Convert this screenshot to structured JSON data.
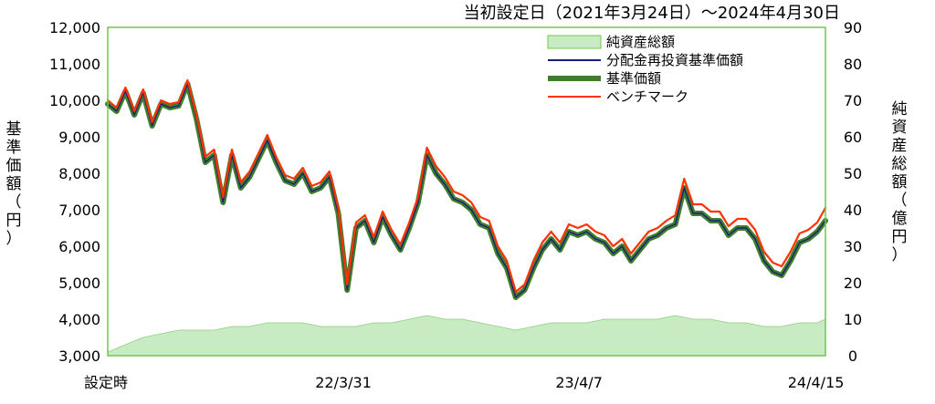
{
  "chart_data": {
    "type": "line",
    "subtitle": "当初設定日（2021年3月24日）～2024年4月30日",
    "ylabel_left": "基準価額（円）",
    "ylabel_right": "純資産総額（億円）",
    "x_ticks": [
      "設定時",
      "22/3/31",
      "23/4/7",
      "24/4/15"
    ],
    "x_start": "2021-03-24",
    "x_end": "2024-04-30",
    "x_tick_dates": [
      "2021-03-24",
      "2022-03-31",
      "2023-04-07",
      "2024-04-15"
    ],
    "y_left_ticks": [
      "3,000",
      "4,000",
      "5,000",
      "6,000",
      "7,000",
      "8,000",
      "9,000",
      "10,000",
      "11,000",
      "12,000"
    ],
    "y_right_ticks": [
      "0",
      "10",
      "20",
      "30",
      "40",
      "50",
      "60",
      "70",
      "80",
      "90"
    ],
    "ylim_left": [
      3000,
      12000
    ],
    "ylim_right": [
      0,
      90
    ],
    "legend": [
      {
        "name": "純資産総額",
        "color": "#c9ebc3",
        "style": "area"
      },
      {
        "name": "分配金再投資基準価額",
        "color": "#1a1f7a",
        "style": "line"
      },
      {
        "name": "基準価額",
        "color": "#3f7f2c",
        "style": "thick"
      },
      {
        "name": "ベンチマーク",
        "color": "#ff3300",
        "style": "line"
      }
    ],
    "series": [
      {
        "name": "基準価額",
        "axis": "left",
        "x": [
          "2021-03-24",
          "2021-04-07",
          "2021-04-21",
          "2021-05-05",
          "2021-05-19",
          "2021-06-02",
          "2021-06-16",
          "2021-06-30",
          "2021-07-14",
          "2021-07-28",
          "2021-08-11",
          "2021-08-25",
          "2021-09-08",
          "2021-09-22",
          "2021-10-06",
          "2021-10-20",
          "2021-11-03",
          "2021-11-17",
          "2021-12-01",
          "2021-12-15",
          "2021-12-29",
          "2022-01-12",
          "2022-01-26",
          "2022-02-09",
          "2022-02-23",
          "2022-03-09",
          "2022-03-23",
          "2022-04-06",
          "2022-04-20",
          "2022-05-04",
          "2022-05-18",
          "2022-06-01",
          "2022-06-15",
          "2022-06-29",
          "2022-07-13",
          "2022-07-27",
          "2022-08-10",
          "2022-08-24",
          "2022-09-07",
          "2022-09-21",
          "2022-10-05",
          "2022-10-19",
          "2022-11-02",
          "2022-11-16",
          "2022-11-30",
          "2022-12-14",
          "2022-12-28",
          "2023-01-11",
          "2023-01-25",
          "2023-02-08",
          "2023-02-22",
          "2023-03-08",
          "2023-03-22",
          "2023-04-05",
          "2023-04-19",
          "2023-05-03",
          "2023-05-17",
          "2023-05-31",
          "2023-06-14",
          "2023-06-28",
          "2023-07-12",
          "2023-07-26",
          "2023-08-09",
          "2023-08-23",
          "2023-09-06",
          "2023-09-20",
          "2023-10-04",
          "2023-10-18",
          "2023-11-01",
          "2023-11-15",
          "2023-11-29",
          "2023-12-13",
          "2023-12-27",
          "2024-01-10",
          "2024-01-24",
          "2024-02-07",
          "2024-02-21",
          "2024-03-06",
          "2024-03-20",
          "2024-04-03",
          "2024-04-17",
          "2024-04-30"
        ],
        "values": [
          9900,
          9700,
          10250,
          9600,
          10200,
          9300,
          9900,
          9800,
          9850,
          10450,
          9500,
          8300,
          8500,
          7200,
          8500,
          7600,
          7900,
          8400,
          8900,
          8300,
          7800,
          7700,
          8000,
          7500,
          7600,
          7900,
          6900,
          4800,
          6500,
          6700,
          6100,
          6800,
          6300,
          5900,
          6500,
          7200,
          8500,
          8000,
          7700,
          7300,
          7200,
          7000,
          6600,
          6500,
          5800,
          5400,
          4600,
          4800,
          5400,
          5900,
          6200,
          5900,
          6400,
          6300,
          6400,
          6200,
          6100,
          5800,
          6000,
          5600,
          5900,
          6200,
          6300,
          6500,
          6600,
          7600,
          6900,
          6900,
          6700,
          6700,
          6300,
          6500,
          6500,
          6200,
          5600,
          5300,
          5200,
          5600,
          6100,
          6200,
          6400,
          6700
        ]
      },
      {
        "name": "分配金再投資基準価額",
        "axis": "left",
        "x": [
          "2021-03-24",
          "2021-04-07",
          "2021-04-21",
          "2021-05-05",
          "2021-05-19",
          "2021-06-02",
          "2021-06-16",
          "2021-06-30",
          "2021-07-14",
          "2021-07-28",
          "2021-08-11",
          "2021-08-25",
          "2021-09-08",
          "2021-09-22",
          "2021-10-06",
          "2021-10-20",
          "2021-11-03",
          "2021-11-17",
          "2021-12-01",
          "2021-12-15",
          "2021-12-29",
          "2022-01-12",
          "2022-01-26",
          "2022-02-09",
          "2022-02-23",
          "2022-03-09",
          "2022-03-23",
          "2022-04-06",
          "2022-04-20",
          "2022-05-04",
          "2022-05-18",
          "2022-06-01",
          "2022-06-15",
          "2022-06-29",
          "2022-07-13",
          "2022-07-27",
          "2022-08-10",
          "2022-08-24",
          "2022-09-07",
          "2022-09-21",
          "2022-10-05",
          "2022-10-19",
          "2022-11-02",
          "2022-11-16",
          "2022-11-30",
          "2022-12-14",
          "2022-12-28",
          "2023-01-11",
          "2023-01-25",
          "2023-02-08",
          "2023-02-22",
          "2023-03-08",
          "2023-03-22",
          "2023-04-05",
          "2023-04-19",
          "2023-05-03",
          "2023-05-17",
          "2023-05-31",
          "2023-06-14",
          "2023-06-28",
          "2023-07-12",
          "2023-07-26",
          "2023-08-09",
          "2023-08-23",
          "2023-09-06",
          "2023-09-20",
          "2023-10-04",
          "2023-10-18",
          "2023-11-01",
          "2023-11-15",
          "2023-11-29",
          "2023-12-13",
          "2023-12-27",
          "2024-01-10",
          "2024-01-24",
          "2024-02-07",
          "2024-02-21",
          "2024-03-06",
          "2024-03-20",
          "2024-04-03",
          "2024-04-17",
          "2024-04-30"
        ],
        "values": [
          9900,
          9700,
          10250,
          9600,
          10200,
          9300,
          9900,
          9800,
          9850,
          10450,
          9500,
          8300,
          8500,
          7200,
          8500,
          7600,
          7900,
          8400,
          8900,
          8300,
          7800,
          7700,
          8000,
          7500,
          7600,
          7900,
          6900,
          4800,
          6500,
          6700,
          6100,
          6800,
          6300,
          5900,
          6500,
          7200,
          8500,
          8000,
          7700,
          7300,
          7200,
          7000,
          6600,
          6500,
          5800,
          5400,
          4600,
          4800,
          5400,
          5900,
          6200,
          5900,
          6400,
          6300,
          6400,
          6200,
          6100,
          5800,
          6000,
          5600,
          5900,
          6200,
          6300,
          6500,
          6600,
          7600,
          6900,
          6900,
          6700,
          6700,
          6300,
          6500,
          6500,
          6200,
          5600,
          5300,
          5200,
          5600,
          6100,
          6200,
          6400,
          6700
        ]
      },
      {
        "name": "ベンチマーク",
        "axis": "left",
        "x": [
          "2021-03-24",
          "2021-04-07",
          "2021-04-21",
          "2021-05-05",
          "2021-05-19",
          "2021-06-02",
          "2021-06-16",
          "2021-06-30",
          "2021-07-14",
          "2021-07-28",
          "2021-08-11",
          "2021-08-25",
          "2021-09-08",
          "2021-09-22",
          "2021-10-06",
          "2021-10-20",
          "2021-11-03",
          "2021-11-17",
          "2021-12-01",
          "2021-12-15",
          "2021-12-29",
          "2022-01-12",
          "2022-01-26",
          "2022-02-09",
          "2022-02-23",
          "2022-03-09",
          "2022-03-23",
          "2022-04-06",
          "2022-04-20",
          "2022-05-04",
          "2022-05-18",
          "2022-06-01",
          "2022-06-15",
          "2022-06-29",
          "2022-07-13",
          "2022-07-27",
          "2022-08-10",
          "2022-08-24",
          "2022-09-07",
          "2022-09-21",
          "2022-10-05",
          "2022-10-19",
          "2022-11-02",
          "2022-11-16",
          "2022-11-30",
          "2022-12-14",
          "2022-12-28",
          "2023-01-11",
          "2023-01-25",
          "2023-02-08",
          "2023-02-22",
          "2023-03-08",
          "2023-03-22",
          "2023-04-05",
          "2023-04-19",
          "2023-05-03",
          "2023-05-17",
          "2023-05-31",
          "2023-06-14",
          "2023-06-28",
          "2023-07-12",
          "2023-07-26",
          "2023-08-09",
          "2023-08-23",
          "2023-09-06",
          "2023-09-20",
          "2023-10-04",
          "2023-10-18",
          "2023-11-01",
          "2023-11-15",
          "2023-11-29",
          "2023-12-13",
          "2023-12-27",
          "2024-01-10",
          "2024-01-24",
          "2024-02-07",
          "2024-02-21",
          "2024-03-06",
          "2024-03-20",
          "2024-04-03",
          "2024-04-17",
          "2024-04-30"
        ],
        "values": [
          10000,
          9800,
          10350,
          9700,
          10300,
          9400,
          10000,
          9900,
          9950,
          10550,
          9600,
          8450,
          8650,
          7350,
          8650,
          7750,
          8050,
          8550,
          9050,
          8450,
          7950,
          7850,
          8150,
          7650,
          7750,
          8050,
          7050,
          4950,
          6650,
          6850,
          6250,
          6950,
          6450,
          6050,
          6650,
          7350,
          8700,
          8200,
          7900,
          7500,
          7400,
          7200,
          6800,
          6700,
          6000,
          5600,
          4750,
          4950,
          5600,
          6100,
          6400,
          6100,
          6600,
          6500,
          6600,
          6400,
          6300,
          6000,
          6200,
          5800,
          6100,
          6400,
          6500,
          6700,
          6850,
          7850,
          7150,
          7150,
          6950,
          6950,
          6550,
          6750,
          6750,
          6450,
          5850,
          5550,
          5450,
          5850,
          6350,
          6450,
          6650,
          7050
        ]
      },
      {
        "name": "純資産総額",
        "axis": "right",
        "x": [
          "2021-03-24",
          "2021-04-21",
          "2021-05-19",
          "2021-06-16",
          "2021-07-14",
          "2021-08-11",
          "2021-09-08",
          "2021-10-06",
          "2021-11-03",
          "2021-12-01",
          "2021-12-29",
          "2022-01-26",
          "2022-02-23",
          "2022-03-23",
          "2022-04-20",
          "2022-05-18",
          "2022-06-15",
          "2022-07-13",
          "2022-08-10",
          "2022-09-07",
          "2022-10-05",
          "2022-11-02",
          "2022-11-30",
          "2022-12-28",
          "2023-01-25",
          "2023-02-22",
          "2023-03-22",
          "2023-04-19",
          "2023-05-17",
          "2023-06-14",
          "2023-07-12",
          "2023-08-09",
          "2023-09-06",
          "2023-10-04",
          "2023-11-01",
          "2023-11-29",
          "2023-12-27",
          "2024-01-24",
          "2024-02-21",
          "2024-03-20",
          "2024-04-17",
          "2024-04-30"
        ],
        "values": [
          1,
          3,
          5,
          6,
          7,
          7,
          7,
          8,
          8,
          9,
          9,
          9,
          8,
          8,
          8,
          9,
          9,
          10,
          11,
          10,
          10,
          9,
          8,
          7,
          8,
          9,
          9,
          9,
          10,
          10,
          10,
          10,
          11,
          10,
          10,
          9,
          9,
          8,
          8,
          9,
          9,
          10
        ]
      }
    ]
  }
}
